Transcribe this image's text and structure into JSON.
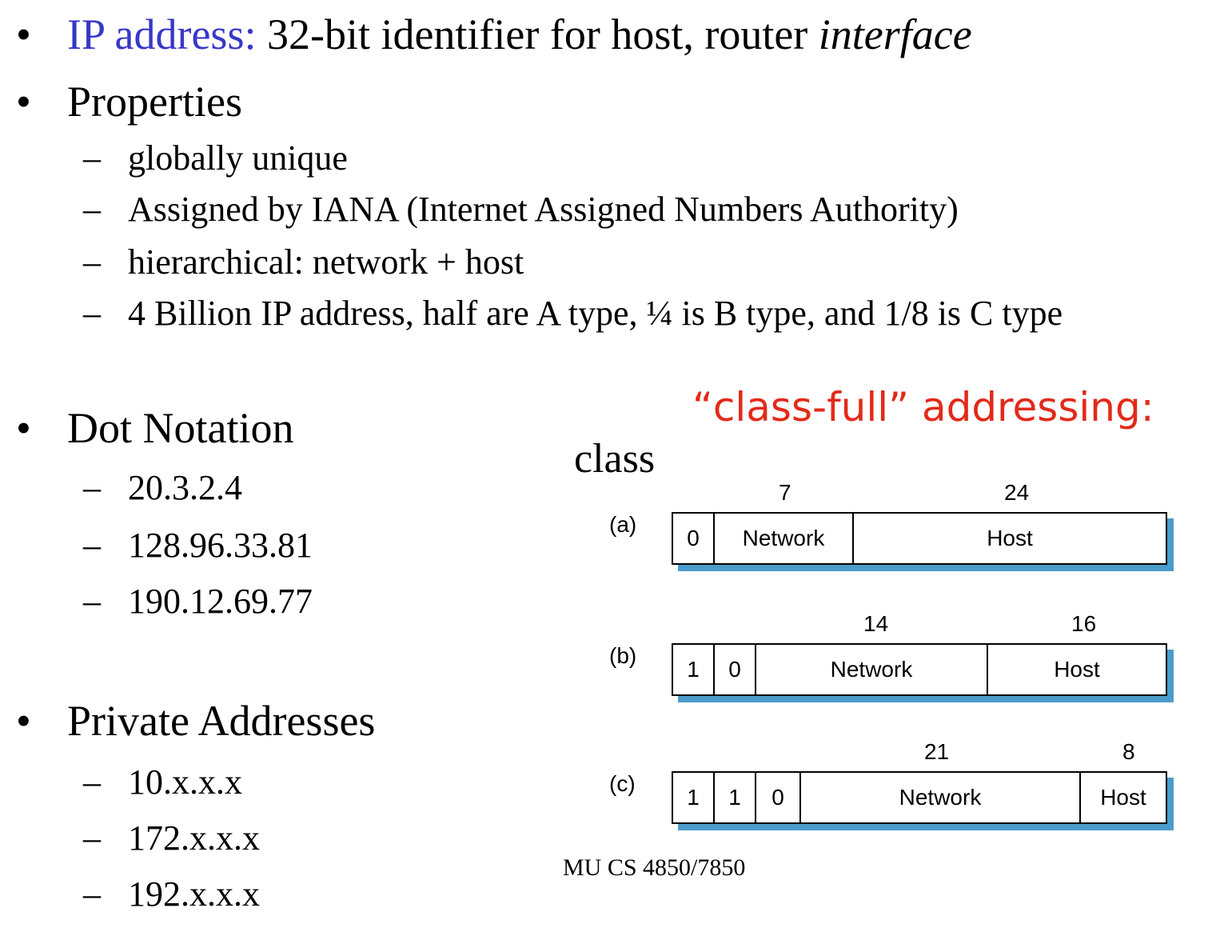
{
  "bullets": {
    "ip": {
      "term": "IP address:",
      "text": "32-bit identifier for host, router",
      "emph": "interface"
    },
    "properties": {
      "title": "Properties",
      "items": [
        "globally unique",
        "Assigned by IANA (Internet Assigned Numbers Authority)",
        "hierarchical: network + host",
        "4 Billion IP address, half are A type, ¼ is B type, and 1/8 is C type"
      ]
    },
    "dot": {
      "title": "Dot Notation",
      "items": [
        "20.3.2.4",
        "128.96.33.81",
        "190.12.69.77"
      ]
    },
    "private": {
      "title": "Private Addresses",
      "items": [
        "10.x.x.x",
        "172.x.x.x",
        "192.x.x.x"
      ]
    }
  },
  "bullet_glyph": "•",
  "dash_glyph": "–",
  "diagram": {
    "heading": "“class-full” addressing:",
    "class_label": "class",
    "rows": [
      {
        "label": "(a)",
        "bits": [
          "0"
        ],
        "network_bits": "7",
        "host_bits": "24",
        "network": "Network",
        "host": "Host"
      },
      {
        "label": "(b)",
        "bits": [
          "1",
          "0"
        ],
        "network_bits": "14",
        "host_bits": "16",
        "network": "Network",
        "host": "Host"
      },
      {
        "label": "(c)",
        "bits": [
          "1",
          "1",
          "0"
        ],
        "network_bits": "21",
        "host_bits": "8",
        "network": "Network",
        "host": "Host"
      }
    ],
    "footer": "MU CS 4850/7850"
  },
  "colors": {
    "term": "#3737c8",
    "heading": "#e22a1a",
    "shadow": "#4a9cc9"
  }
}
